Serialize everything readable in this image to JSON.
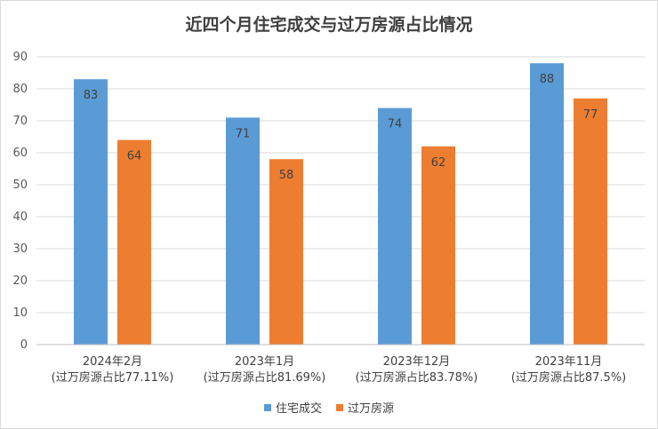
{
  "chart_data": {
    "type": "bar",
    "title": "近四个月住宅成交与过万房源占比情况",
    "categories": [
      {
        "line1": "2024年2月",
        "line2": "(过万房源占比77.11%)"
      },
      {
        "line1": "2023年1月",
        "line2": "(过万房源占比81.69%)"
      },
      {
        "line1": "2023年12月",
        "line2": "(过万房源占比83.78%)"
      },
      {
        "line1": "2023年11月",
        "line2": "(过万房源占比87.5%)"
      }
    ],
    "series": [
      {
        "name": "住宅成交",
        "color": "#5b9bd5",
        "values": [
          83,
          71,
          74,
          88
        ]
      },
      {
        "name": "过万房源",
        "color": "#ed7d31",
        "values": [
          64,
          58,
          62,
          77
        ]
      }
    ],
    "ylim": [
      0,
      90
    ],
    "yticks": [
      0,
      10,
      20,
      30,
      40,
      50,
      60,
      70,
      80,
      90
    ],
    "grid": true,
    "legend_position": "bottom"
  }
}
